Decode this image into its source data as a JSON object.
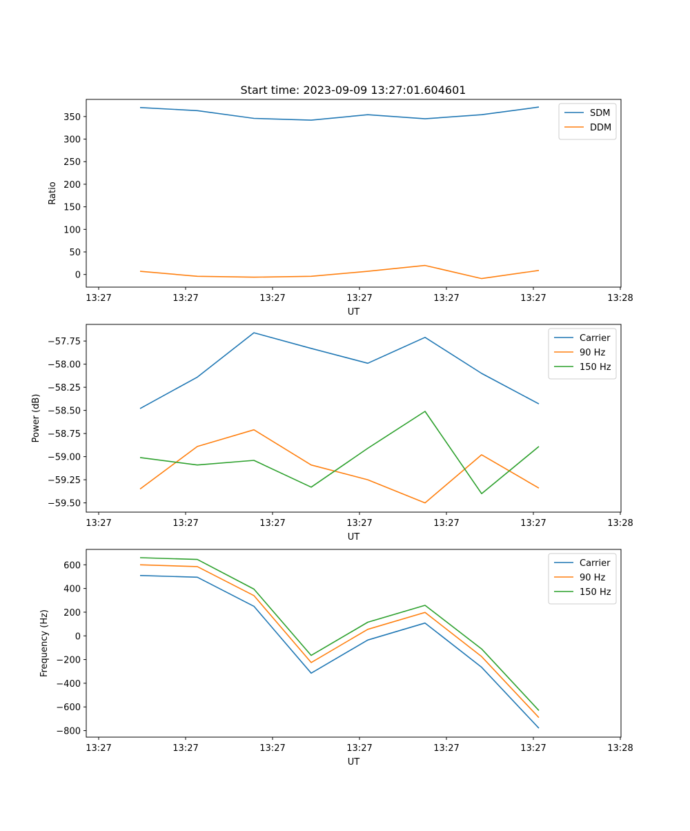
{
  "figure_title": "Start time: 2023-09-09 13:27:01.604601",
  "chart_data": [
    {
      "type": "line",
      "title": "Start time: 2023-09-09 13:27:01.604601",
      "xlabel": "UT",
      "ylabel": "Ratio",
      "x_tick_labels": [
        "13:27",
        "13:27",
        "13:27",
        "13:27",
        "13:27",
        "13:27",
        "13:28"
      ],
      "y_ticks": [
        0,
        50,
        100,
        150,
        200,
        250,
        300,
        350
      ],
      "y_tick_labels": [
        "0",
        "50",
        "100",
        "150",
        "200",
        "250",
        "300",
        "350"
      ],
      "ylim": [
        -28,
        388
      ],
      "legend_position": "top-right",
      "series": [
        {
          "name": "SDM",
          "color": "#1f77b4",
          "values": [
            370,
            363,
            346,
            342,
            354,
            345,
            354,
            371
          ]
        },
        {
          "name": "DDM",
          "color": "#ff7f0e",
          "values": [
            7,
            -4,
            -6,
            -4,
            7,
            20,
            -9,
            9
          ]
        }
      ]
    },
    {
      "type": "line",
      "title": "",
      "xlabel": "UT",
      "ylabel": "Power (dB)",
      "x_tick_labels": [
        "13:27",
        "13:27",
        "13:27",
        "13:27",
        "13:27",
        "13:27",
        "13:28"
      ],
      "y_ticks": [
        -59.5,
        -59.25,
        -59.0,
        -58.75,
        -58.5,
        -58.25,
        -58.0,
        -57.75
      ],
      "y_tick_labels": [
        "−59.50",
        "−59.25",
        "−59.00",
        "−58.75",
        "−58.50",
        "−58.25",
        "−58.00",
        "−57.75"
      ],
      "ylim": [
        -59.6,
        -57.57
      ],
      "legend_position": "top-right",
      "series": [
        {
          "name": "Carrier",
          "color": "#1f77b4",
          "values": [
            -58.48,
            -58.14,
            -57.66,
            -57.83,
            -57.99,
            -57.71,
            -58.1,
            -58.43
          ]
        },
        {
          "name": "90 Hz",
          "color": "#ff7f0e",
          "values": [
            -59.35,
            -58.89,
            -58.71,
            -59.09,
            -59.25,
            -59.5,
            -58.98,
            -59.34
          ]
        },
        {
          "name": "150 Hz",
          "color": "#2ca02c",
          "values": [
            -59.01,
            -59.09,
            -59.04,
            -59.33,
            -58.91,
            -58.51,
            -59.4,
            -58.89
          ]
        }
      ]
    },
    {
      "type": "line",
      "title": "",
      "xlabel": "UT",
      "ylabel": "Frequency (Hz)",
      "x_tick_labels": [
        "13:27",
        "13:27",
        "13:27",
        "13:27",
        "13:27",
        "13:27",
        "13:28"
      ],
      "y_ticks": [
        -800,
        -600,
        -400,
        -200,
        0,
        200,
        400,
        600
      ],
      "y_tick_labels": [
        "−800",
        "−600",
        "−400",
        "−200",
        "0",
        "200",
        "400",
        "600"
      ],
      "ylim": [
        -855,
        730
      ],
      "legend_position": "top-right",
      "series": [
        {
          "name": "Carrier",
          "color": "#1f77b4",
          "values": [
            510,
            495,
            250,
            -315,
            -35,
            108,
            -265,
            -780
          ]
        },
        {
          "name": "90 Hz",
          "color": "#ff7f0e",
          "values": [
            600,
            585,
            340,
            -225,
            55,
            198,
            -175,
            -690
          ]
        },
        {
          "name": "150 Hz",
          "color": "#2ca02c",
          "values": [
            660,
            645,
            395,
            -165,
            115,
            258,
            -110,
            -630
          ]
        }
      ]
    }
  ]
}
